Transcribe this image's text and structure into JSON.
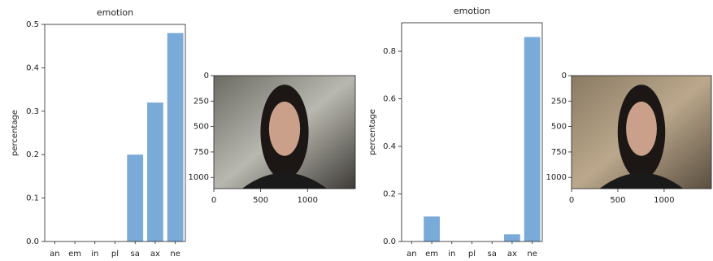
{
  "chart_data": [
    {
      "type": "bar",
      "title": "emotion",
      "y_label": "percentage",
      "categories": [
        "an",
        "em",
        "in",
        "pl",
        "sa",
        "ax",
        "ne"
      ],
      "values": [
        0,
        0,
        0,
        0,
        0.2,
        0.32,
        0.48
      ],
      "color": "#7aaad8",
      "ylim": [
        0,
        0.5
      ],
      "yticks": [
        {
          "value": 0,
          "label": "0.0"
        },
        0.1,
        0.2,
        0.3,
        0.4,
        0.5
      ]
    },
    {
      "type": "image",
      "xlim": [
        0,
        1510
      ],
      "ylim": [
        1110,
        0
      ],
      "xticks": [
        0,
        500,
        1000
      ],
      "yticks": [
        0,
        250,
        500,
        750,
        1000
      ]
    },
    {
      "type": "bar",
      "title": "emotion",
      "y_label": "percentage",
      "categories": [
        "an",
        "em",
        "in",
        "pl",
        "sa",
        "ax",
        "ne"
      ],
      "values": [
        0,
        0.105,
        0,
        0,
        0,
        0.03,
        0.86
      ],
      "color": "#7aaad8",
      "ylim": [
        0,
        0.92
      ],
      "yticks": [
        {
          "value": 0,
          "label": "0.0"
        },
        0.2,
        0.4,
        0.6,
        0.8
      ]
    },
    {
      "type": "image",
      "xlim": [
        0,
        1510
      ],
      "ylim": [
        1110,
        0
      ],
      "xticks": [
        0,
        500,
        1000
      ],
      "yticks": [
        0,
        250,
        500,
        750,
        1000
      ]
    }
  ]
}
